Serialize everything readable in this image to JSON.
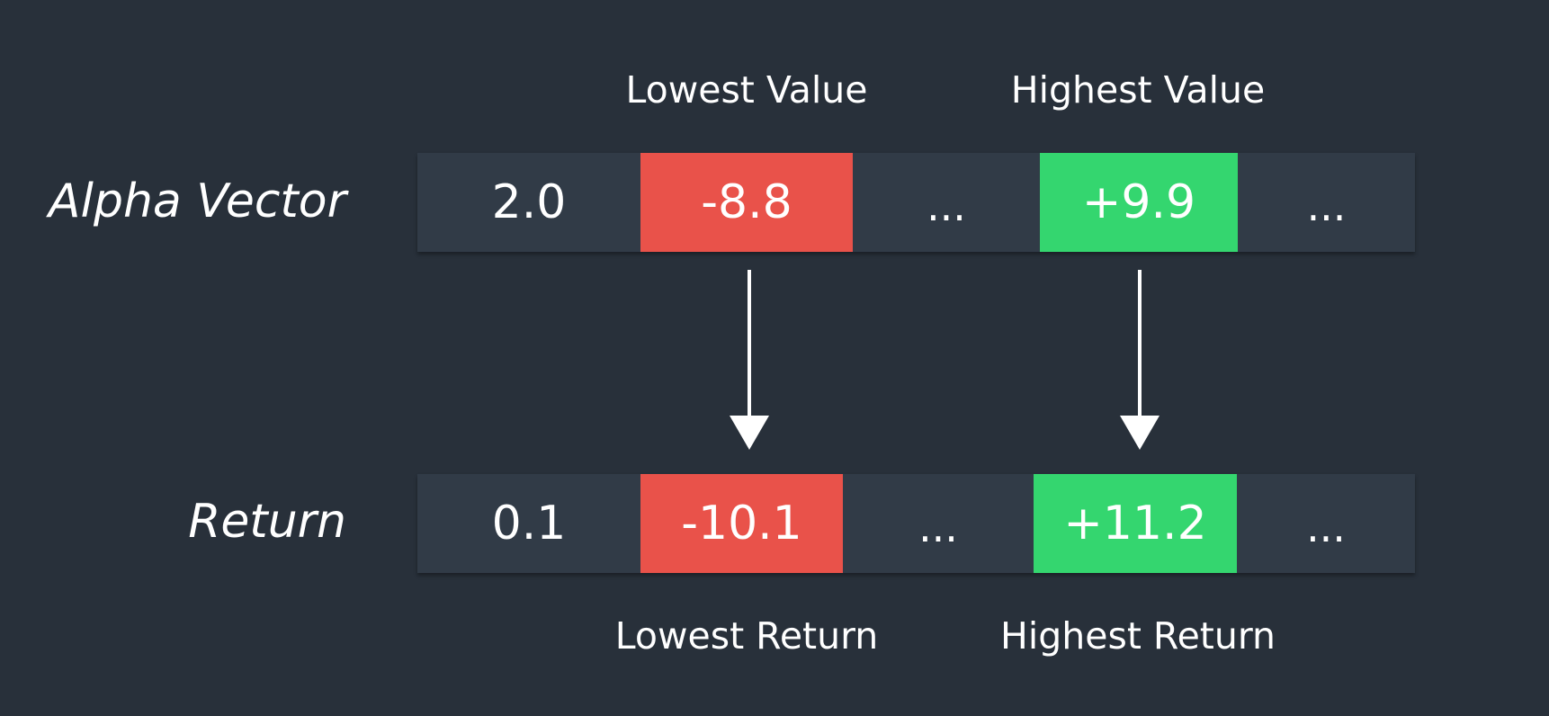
{
  "diagram": {
    "rows": [
      {
        "label": "Alpha Vector",
        "cells": [
          {
            "text": "2.0",
            "kind": "plain"
          },
          {
            "text": "-8.8",
            "kind": "negative"
          },
          {
            "text": "...",
            "kind": "plain"
          },
          {
            "text": "+9.9",
            "kind": "positive"
          },
          {
            "text": "...",
            "kind": "plain"
          }
        ]
      },
      {
        "label": "Return",
        "cells": [
          {
            "text": "0.1",
            "kind": "plain"
          },
          {
            "text": "-10.1",
            "kind": "negative"
          },
          {
            "text": "...",
            "kind": "plain"
          },
          {
            "text": "+11.2",
            "kind": "positive"
          },
          {
            "text": "...",
            "kind": "plain"
          }
        ]
      }
    ],
    "top_labels": {
      "lowest": "Lowest Value",
      "highest": "Highest Value"
    },
    "bottom_labels": {
      "lowest": "Lowest Return",
      "highest": "Highest Return"
    },
    "colors": {
      "background": "#28303a",
      "cell": "#313b47",
      "negative": "#e9524a",
      "positive": "#34d66f",
      "text": "#ffffff"
    }
  }
}
